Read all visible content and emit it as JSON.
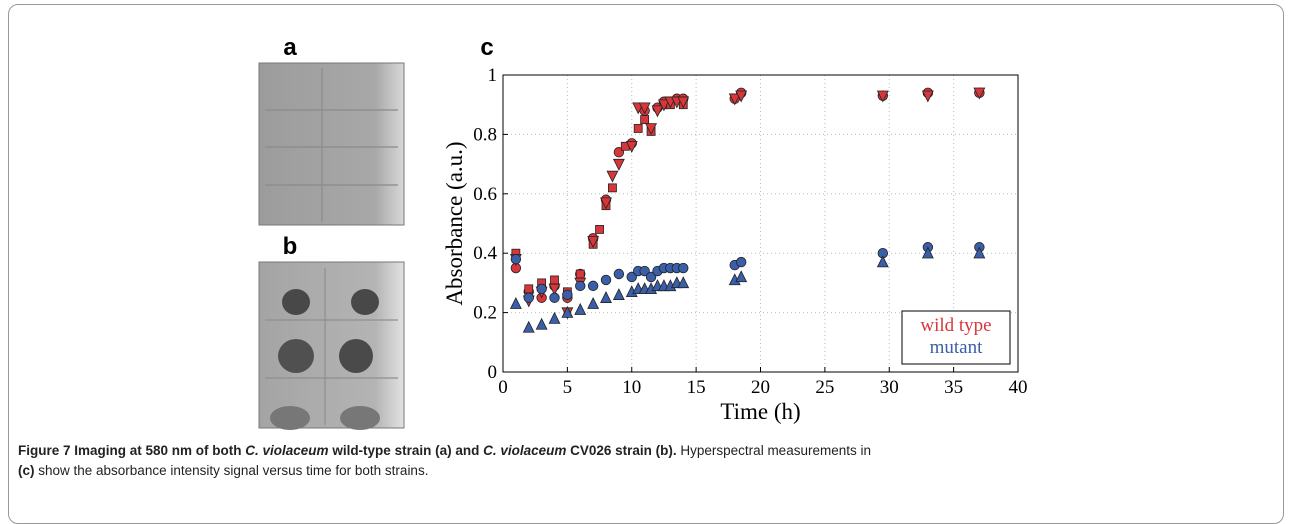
{
  "figure": {
    "panel_labels": [
      "a",
      "b",
      "c"
    ],
    "caption": [
      "Figure 7 Imaging at 580 nm of both ",
      "C. violaceum",
      " wild-type strain (a) and ",
      "C. violaceum",
      " CV026 strain (b).",
      " Hyperspectral measurements in",
      "(c)",
      " show the absorbance intensity signal versus time for both strains."
    ]
  },
  "chart_data": {
    "type": "scatter",
    "x_label": "Time (h)",
    "y_label": "Absorbance (a.u.)",
    "xlim": [
      0,
      40
    ],
    "ylim": [
      0,
      1
    ],
    "xticks": [
      0,
      5,
      10,
      15,
      20,
      25,
      30,
      35,
      40
    ],
    "yticks": [
      0,
      0.2,
      0.4,
      0.6,
      0.8,
      1
    ],
    "grid": true,
    "legend": "lower right",
    "series": [
      {
        "name": "wild type",
        "color": "#d7373b",
        "replicates": [
          {
            "marker": "circle",
            "x": [
              1,
              2,
              3,
              4,
              5,
              6,
              7,
              8,
              9,
              10,
              11,
              12,
              12.5,
              13,
              13.5,
              14,
              18,
              18.5,
              29.5,
              33,
              37
            ],
            "y": [
              0.35,
              0.27,
              0.25,
              0.29,
              0.25,
              0.33,
              0.45,
              0.58,
              0.74,
              0.77,
              0.88,
              0.89,
              0.91,
              0.91,
              0.92,
              0.92,
              0.92,
              0.94,
              0.93,
              0.94,
              0.94
            ]
          },
          {
            "marker": "square",
            "x": [
              1,
              2,
              3,
              4,
              5,
              6,
              7,
              7.5,
              8,
              8.5,
              9.5,
              10.5,
              11,
              11.5,
              12.5,
              13,
              14
            ],
            "y": [
              0.4,
              0.28,
              0.3,
              0.31,
              0.27,
              0.33,
              0.43,
              0.48,
              0.56,
              0.62,
              0.76,
              0.82,
              0.85,
              0.81,
              0.9,
              0.9,
              0.9
            ]
          },
          {
            "marker": "triangle-down",
            "x": [
              1,
              2,
              3,
              4,
              5,
              6,
              7,
              8,
              8.5,
              9,
              10,
              10.5,
              11,
              11.5,
              12,
              12.5,
              13,
              13.5,
              14,
              18,
              18.5,
              29.5,
              33,
              37
            ],
            "y": [
              0.38,
              0.24,
              0.27,
              0.28,
              0.2,
              0.3,
              0.44,
              0.57,
              0.66,
              0.7,
              0.76,
              0.89,
              0.89,
              0.82,
              0.88,
              0.9,
              0.91,
              0.91,
              0.91,
              0.92,
              0.93,
              0.93,
              0.93,
              0.94
            ]
          }
        ]
      },
      {
        "name": "mutant",
        "color": "#3b5ea9",
        "replicates": [
          {
            "marker": "circle",
            "x": [
              1,
              2,
              3,
              4,
              5,
              6,
              7,
              8,
              9,
              10,
              10.5,
              11,
              11.5,
              12,
              12.5,
              13,
              13.5,
              14,
              18,
              18.5,
              29.5,
              33,
              37
            ],
            "y": [
              0.38,
              0.25,
              0.28,
              0.25,
              0.26,
              0.29,
              0.29,
              0.31,
              0.33,
              0.32,
              0.34,
              0.34,
              0.32,
              0.34,
              0.35,
              0.35,
              0.35,
              0.35,
              0.36,
              0.37,
              0.4,
              0.42,
              0.42
            ]
          },
          {
            "marker": "triangle-up",
            "x": [
              1,
              2,
              3,
              4,
              5,
              6,
              7,
              8,
              9,
              10,
              10.5,
              11,
              11.5,
              12,
              12.5,
              13,
              13.5,
              14,
              18,
              18.5,
              29.5,
              33,
              37
            ],
            "y": [
              0.23,
              0.15,
              0.16,
              0.18,
              0.2,
              0.21,
              0.23,
              0.25,
              0.26,
              0.27,
              0.28,
              0.28,
              0.28,
              0.29,
              0.29,
              0.29,
              0.3,
              0.3,
              0.31,
              0.32,
              0.37,
              0.4,
              0.4
            ]
          }
        ]
      }
    ]
  }
}
